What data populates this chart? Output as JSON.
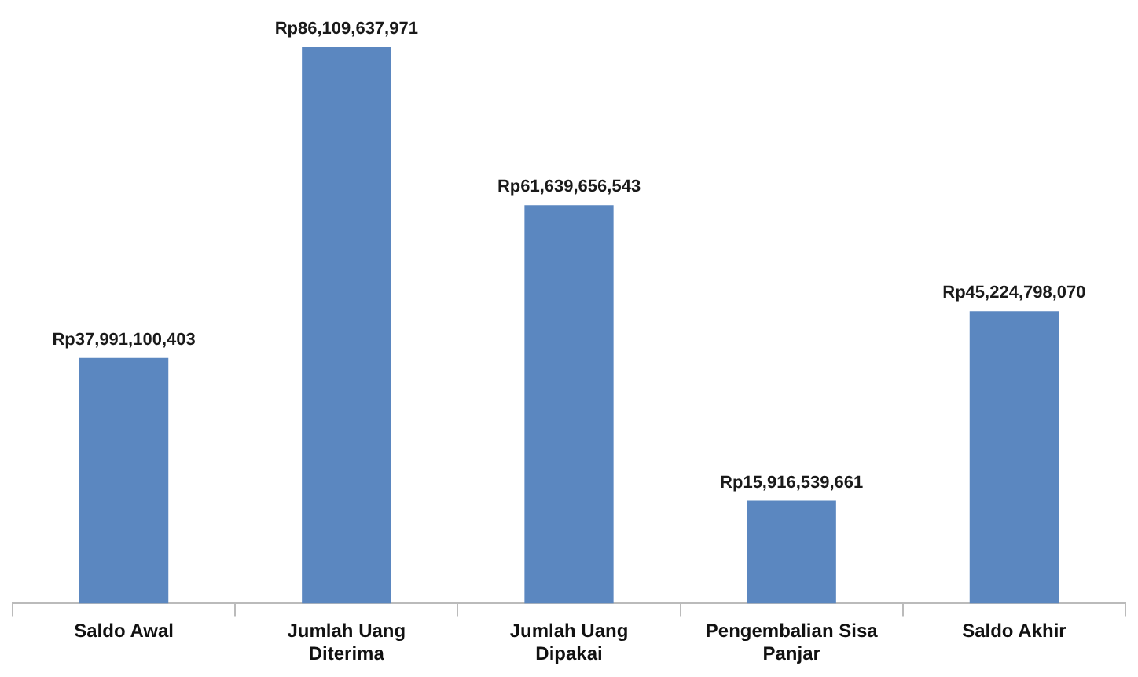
{
  "chart_data": {
    "type": "bar",
    "categories": [
      "Saldo Awal",
      "Jumlah Uang Diterima",
      "Jumlah Uang Dipakai",
      "Pengembalian Sisa Panjar",
      "Saldo Akhir"
    ],
    "values": [
      37991100403,
      86109637971,
      61639656543,
      15916539661,
      45224798070
    ],
    "value_labels": [
      "Rp37,991,100,403",
      "Rp86,109,637,971",
      "Rp61,639,656,543",
      "Rp15,916,539,661",
      "Rp45,224,798,070"
    ],
    "color": "#5b87c0"
  }
}
